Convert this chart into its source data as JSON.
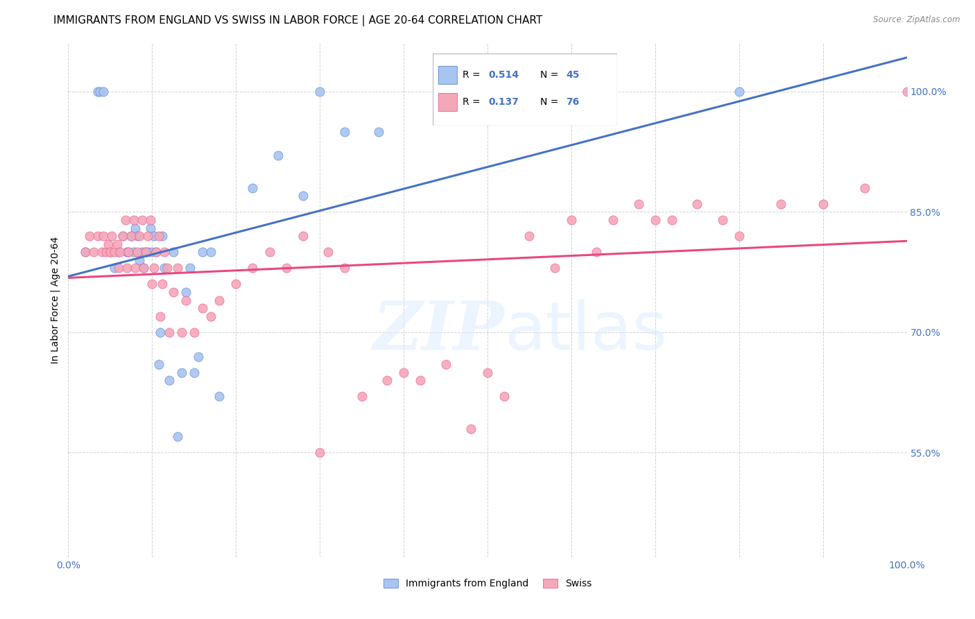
{
  "title": "IMMIGRANTS FROM ENGLAND VS SWISS IN LABOR FORCE | AGE 20-64 CORRELATION CHART",
  "source": "Source: ZipAtlas.com",
  "ylabel": "In Labor Force | Age 20-64",
  "blue_color": "#A8C4F0",
  "pink_color": "#F4A7B9",
  "line_blue": "#4472C4",
  "line_pink": "#E84880",
  "ytick_labels": [
    "55.0%",
    "70.0%",
    "85.0%",
    "100.0%"
  ],
  "ytick_values": [
    0.55,
    0.7,
    0.85,
    1.0
  ],
  "xlim": [
    0.0,
    1.0
  ],
  "ylim": [
    0.42,
    1.06
  ],
  "watermark": "ZIPatlas",
  "legend_text_color": "#4472C4",
  "title_fontsize": 11,
  "axis_label_fontsize": 10,
  "tick_fontsize": 10,
  "england_x": [
    0.02,
    0.035,
    0.038,
    0.042,
    0.05,
    0.055,
    0.06,
    0.065,
    0.07,
    0.072,
    0.075,
    0.078,
    0.08,
    0.082,
    0.085,
    0.088,
    0.09,
    0.092,
    0.095,
    0.098,
    0.1,
    0.102,
    0.105,
    0.108,
    0.11,
    0.112,
    0.115,
    0.12,
    0.125,
    0.13,
    0.135,
    0.14,
    0.145,
    0.15,
    0.155,
    0.16,
    0.17,
    0.18,
    0.22,
    0.25,
    0.28,
    0.3,
    0.33,
    0.37,
    0.8
  ],
  "england_y": [
    0.8,
    1.0,
    1.0,
    1.0,
    0.8,
    0.78,
    0.8,
    0.82,
    0.8,
    0.8,
    0.82,
    0.8,
    0.83,
    0.82,
    0.79,
    0.8,
    0.78,
    0.8,
    0.8,
    0.83,
    0.8,
    0.82,
    0.8,
    0.66,
    0.7,
    0.82,
    0.78,
    0.64,
    0.8,
    0.57,
    0.65,
    0.75,
    0.78,
    0.65,
    0.67,
    0.8,
    0.8,
    0.62,
    0.88,
    0.92,
    0.87,
    1.0,
    0.95,
    0.95,
    1.0
  ],
  "swiss_x": [
    0.02,
    0.025,
    0.03,
    0.035,
    0.04,
    0.042,
    0.045,
    0.048,
    0.05,
    0.052,
    0.055,
    0.058,
    0.06,
    0.062,
    0.065,
    0.068,
    0.07,
    0.072,
    0.075,
    0.078,
    0.08,
    0.082,
    0.085,
    0.088,
    0.09,
    0.092,
    0.095,
    0.098,
    0.1,
    0.102,
    0.105,
    0.108,
    0.11,
    0.112,
    0.115,
    0.118,
    0.12,
    0.125,
    0.13,
    0.135,
    0.14,
    0.15,
    0.16,
    0.17,
    0.18,
    0.2,
    0.22,
    0.24,
    0.26,
    0.28,
    0.31,
    0.33,
    0.35,
    0.38,
    0.4,
    0.42,
    0.45,
    0.48,
    0.5,
    0.52,
    0.55,
    0.58,
    0.6,
    0.63,
    0.65,
    0.68,
    0.7,
    0.72,
    0.75,
    0.78,
    0.8,
    0.85,
    0.9,
    0.95,
    1.0,
    0.3
  ],
  "swiss_y": [
    0.8,
    0.82,
    0.8,
    0.82,
    0.8,
    0.82,
    0.8,
    0.81,
    0.8,
    0.82,
    0.8,
    0.81,
    0.78,
    0.8,
    0.82,
    0.84,
    0.78,
    0.8,
    0.82,
    0.84,
    0.78,
    0.8,
    0.82,
    0.84,
    0.78,
    0.8,
    0.82,
    0.84,
    0.76,
    0.78,
    0.8,
    0.82,
    0.72,
    0.76,
    0.8,
    0.78,
    0.7,
    0.75,
    0.78,
    0.7,
    0.74,
    0.7,
    0.73,
    0.72,
    0.74,
    0.76,
    0.78,
    0.8,
    0.78,
    0.82,
    0.8,
    0.78,
    0.62,
    0.64,
    0.65,
    0.64,
    0.66,
    0.58,
    0.65,
    0.62,
    0.82,
    0.78,
    0.84,
    0.8,
    0.84,
    0.86,
    0.84,
    0.84,
    0.86,
    0.84,
    0.82,
    0.86,
    0.86,
    0.88,
    1.0,
    0.55
  ]
}
